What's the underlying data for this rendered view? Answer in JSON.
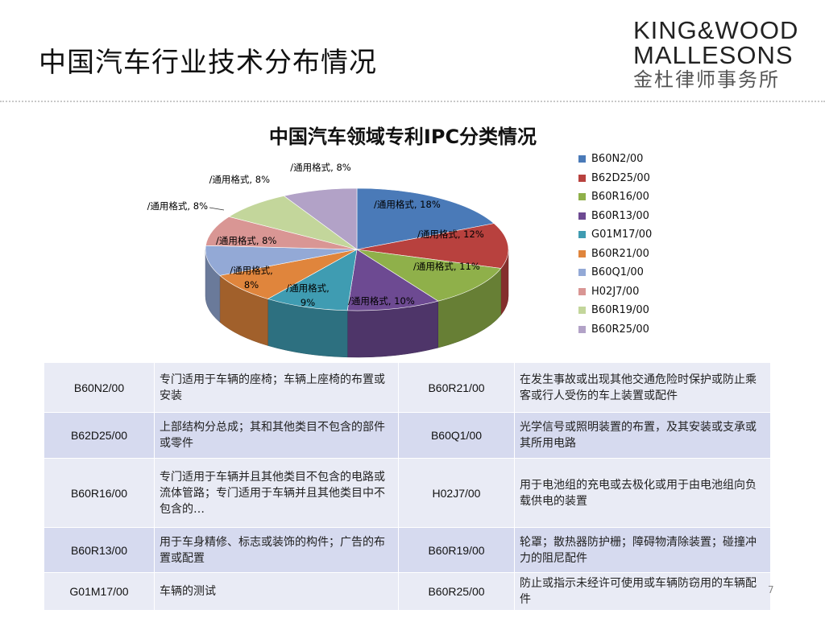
{
  "page": {
    "title": "中国汽车行业技术分布情况",
    "page_number": "7"
  },
  "logo": {
    "line1": "KING&WOOD",
    "line2": "MALLESONS",
    "line3": "金杜律师事务所"
  },
  "chart_data": {
    "type": "pie",
    "title": "中国汽车领域专利IPC分类情况",
    "categories": [
      "B60N2/00",
      "B62D25/00",
      "B60R16/00",
      "B60R13/00",
      "G01M17/00",
      "B60R21/00",
      "B60Q1/00",
      "H02J7/00",
      "B60R19/00",
      "B60R25/00"
    ],
    "values": [
      18,
      12,
      11,
      10,
      9,
      8,
      8,
      8,
      8,
      8
    ],
    "data_label_prefix": "/通用格式, ",
    "data_labels": [
      "18%",
      "12%",
      "11%",
      "10%",
      "9%",
      "8%",
      "8%",
      "8%",
      "8%",
      "8%"
    ],
    "colors": [
      "#4a7ab8",
      "#b8413e",
      "#8fb04a",
      "#6d4a92",
      "#3f9cb2",
      "#e0853c",
      "#93a9d6",
      "#d99694",
      "#c3d69b",
      "#b2a2c7"
    ],
    "style": "3d",
    "legend_position": "right"
  },
  "table": {
    "rows": [
      [
        {
          "code": "B60N2/00",
          "desc": "专门适用于车辆的座椅；车辆上座椅的布置或安装"
        },
        {
          "code": "B60R21/00",
          "desc": "在发生事故或出现其他交通危险时保护或防止乘客或行人受伤的车上装置或配件"
        }
      ],
      [
        {
          "code": "B62D25/00",
          "desc": "上部结构分总成；其和其他类目不包含的部件或零件"
        },
        {
          "code": "B60Q1/00",
          "desc": "光学信号或照明装置的布置，及其安装或支承或其所用电路"
        }
      ],
      [
        {
          "code": "B60R16/00",
          "desc": "专门适用于车辆并且其他类目不包含的电路或流体管路；专门适用于车辆并且其他类目中不包含的…"
        },
        {
          "code": "H02J7/00",
          "desc": "用于电池组的充电或去极化或用于由电池组向负载供电的装置"
        }
      ],
      [
        {
          "code": "B60R13/00",
          "desc": "用于车身精修、标志或装饰的构件；广告的布置或配置"
        },
        {
          "code": "B60R19/00",
          "desc": "轮罩；散热器防护栅；障碍物清除装置；碰撞冲力的阻尼配件"
        }
      ],
      [
        {
          "code": "G01M17/00",
          "desc": "车辆的测试"
        },
        {
          "code": "B60R25/00",
          "desc": "防止或指示未经许可使用或车辆防窃用的车辆配件"
        }
      ]
    ]
  }
}
